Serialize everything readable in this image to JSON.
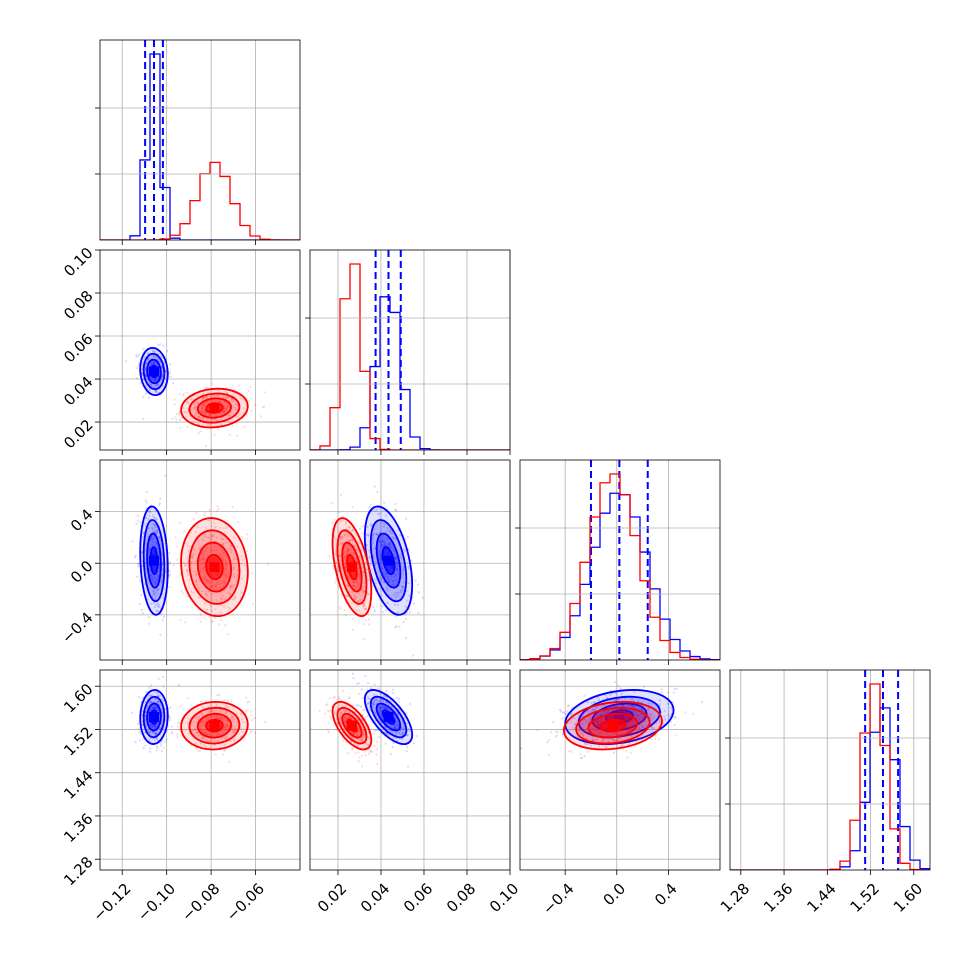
{
  "figure": "corner plot",
  "colors": {
    "series_a": "#0000ff",
    "series_b": "#ff0000"
  },
  "chart_data": {
    "type": "corner",
    "grid": true,
    "parameters": [
      {
        "range": [
          -0.13,
          -0.04
        ],
        "ticks": [
          -0.12,
          -0.1,
          -0.08,
          -0.06
        ],
        "tick_labels": [
          "−0.12",
          "−0.10",
          "−0.08",
          "−0.06"
        ]
      },
      {
        "range": [
          0.007,
          0.1
        ],
        "ticks": [
          0.02,
          0.04,
          0.06,
          0.08,
          0.1
        ],
        "tick_labels": [
          "0.02",
          "0.04",
          "0.06",
          "0.08",
          "0.10"
        ]
      },
      {
        "range": [
          -0.75,
          0.8
        ],
        "ticks": [
          -0.4,
          0.0,
          0.4
        ],
        "tick_labels": [
          "−0.4",
          "0.0",
          "0.4"
        ]
      },
      {
        "range": [
          1.26,
          1.63
        ],
        "ticks": [
          1.28,
          1.36,
          1.44,
          1.52,
          1.6
        ],
        "tick_labels": [
          "1.28",
          "1.36",
          "1.44",
          "1.52",
          "1.60"
        ]
      }
    ],
    "series": [
      {
        "color": "#0000ff",
        "mean": [
          -0.1057,
          0.0435,
          0.02,
          1.543
        ],
        "std": [
          0.0031,
          0.0055,
          0.21,
          0.025
        ],
        "corr": [
          [
            1,
            -0.1,
            -0.15,
            0.05
          ],
          [
            -0.1,
            1,
            -0.45,
            -0.65
          ],
          [
            -0.15,
            -0.45,
            1,
            0.25
          ],
          [
            0.05,
            -0.65,
            0.25,
            1
          ]
        ],
        "quantiles": [
          [
            -0.1097,
            -0.1057,
            -0.1017
          ],
          [
            0.0375,
            0.0435,
            0.0492
          ],
          [
            -0.2,
            0.02,
            0.24
          ],
          [
            1.51,
            1.543,
            1.571
          ]
        ]
      },
      {
        "color": "#ff0000",
        "mean": [
          -0.0785,
          0.0265,
          -0.03,
          1.527
        ],
        "std": [
          0.0075,
          0.0045,
          0.19,
          0.022
        ],
        "corr": [
          [
            1,
            0.1,
            -0.1,
            0.05
          ],
          [
            0.1,
            1,
            -0.5,
            -0.6
          ],
          [
            -0.1,
            -0.5,
            1,
            0.2
          ],
          [
            0.05,
            -0.6,
            0.2,
            1
          ]
        ],
        "quantiles": null
      }
    ]
  }
}
